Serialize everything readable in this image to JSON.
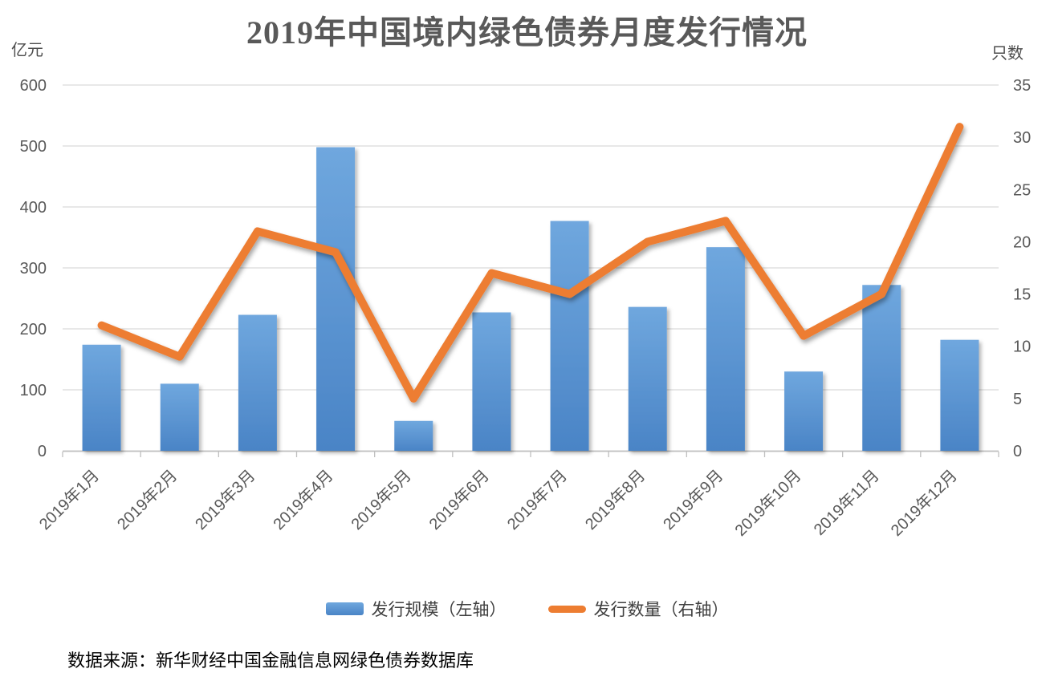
{
  "title": "2019年中国境内绿色债券月度发行情况",
  "left_axis_unit": "亿元",
  "right_axis_unit": "只数",
  "legend": {
    "bar_label": "发行规模（左轴）",
    "line_label": "发行数量（右轴）"
  },
  "source_note": "数据来源：新华财经中国金融信息网绿色债券数据库",
  "colors": {
    "bar_gradient_top": "#6FA7DE",
    "bar_gradient_bottom": "#4A84C6",
    "line": "#ED7D31",
    "gridline": "#D9D9D9",
    "axis_line": "#BFBFBF",
    "tick_text": "#595959",
    "title_text": "#595959",
    "legend_text": "#404040",
    "source_text": "#000000"
  },
  "chart_data": {
    "type": "combo-bar-line",
    "title": "2019年中国境内绿色债券月度发行情况",
    "categories": [
      "2019年1月",
      "2019年2月",
      "2019年3月",
      "2019年4月",
      "2019年5月",
      "2019年6月",
      "2019年7月",
      "2019年8月",
      "2019年9月",
      "2019年10月",
      "2019年11月",
      "2019年12月"
    ],
    "series": [
      {
        "name": "发行规模（左轴）",
        "type": "bar",
        "axis": "left",
        "unit": "亿元",
        "values": [
          174,
          110,
          223,
          498,
          49,
          227,
          377,
          236,
          334,
          130,
          272,
          182
        ]
      },
      {
        "name": "发行数量（右轴）",
        "type": "line",
        "axis": "right",
        "unit": "只",
        "values": [
          12,
          9,
          21,
          19,
          5,
          17,
          15,
          20,
          22,
          11,
          15,
          31
        ]
      }
    ],
    "left_axis": {
      "label": "亿元",
      "min": 0,
      "max": 600,
      "step": 100,
      "ticks": [
        0,
        100,
        200,
        300,
        400,
        500,
        600
      ]
    },
    "right_axis": {
      "label": "只数",
      "min": 0,
      "max": 35,
      "step": 5,
      "ticks": [
        0,
        5,
        10,
        15,
        20,
        25,
        30,
        35
      ]
    },
    "grid": true,
    "legend_position": "bottom",
    "x_tick_label_rotation_deg": -45
  }
}
